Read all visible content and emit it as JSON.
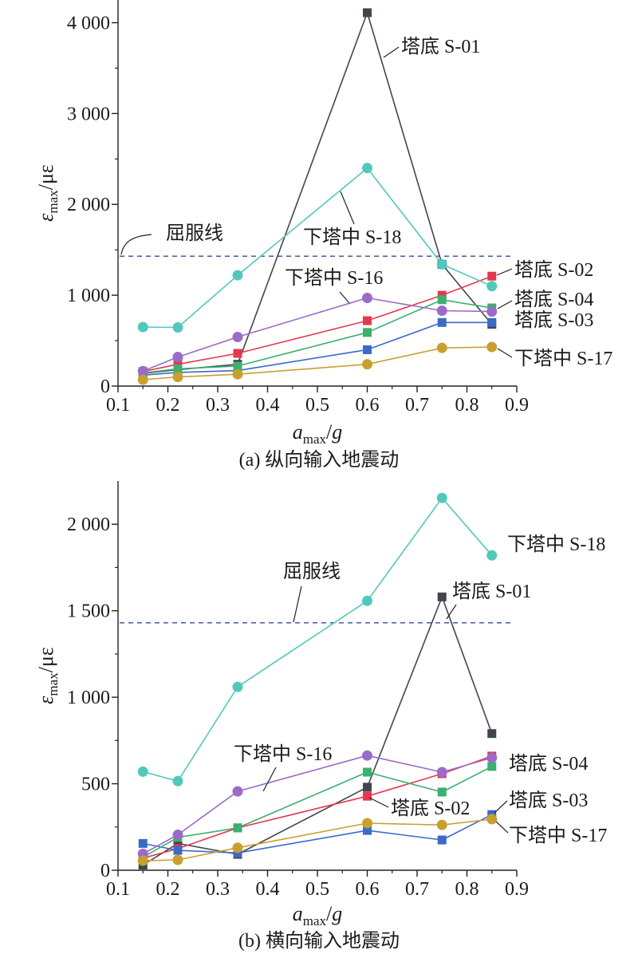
{
  "chart_data": [
    {
      "type": "line",
      "caption": "(a) 纵向输入地震动",
      "xlabel": {
        "var": "a",
        "sub": "max",
        "sep": "/",
        "unit": "g"
      },
      "ylabel": {
        "var": "ε",
        "sub": "max",
        "sep": "/",
        "unit": "με"
      },
      "xlim": [
        0.1,
        0.9
      ],
      "ylim": [
        0,
        4250
      ],
      "grid": false,
      "x_ticks": [
        {
          "value": 0.1,
          "label": "0.1"
        },
        {
          "value": 0.2,
          "label": "0.2"
        },
        {
          "value": 0.3,
          "label": "0.3"
        },
        {
          "value": 0.4,
          "label": "0.4"
        },
        {
          "value": 0.5,
          "label": "0.5"
        },
        {
          "value": 0.6,
          "label": "0.6"
        },
        {
          "value": 0.7,
          "label": "0.7"
        },
        {
          "value": 0.8,
          "label": "0.8"
        },
        {
          "value": 0.9,
          "label": "0.9"
        }
      ],
      "y_ticks": [
        {
          "value": 0,
          "label": "0"
        },
        {
          "value": 1000,
          "label": "1 000"
        },
        {
          "value": 2000,
          "label": "2 000"
        },
        {
          "value": 3000,
          "label": "3 000"
        },
        {
          "value": 4000,
          "label": "4 000"
        }
      ],
      "reference_line": {
        "label": "屈服线",
        "value": 1430,
        "style": "dashed",
        "color": "#2f4e9c"
      },
      "x": [
        0.15,
        0.22,
        0.34,
        0.6,
        0.75,
        0.85
      ],
      "series": [
        {
          "name": "塔底 S-01",
          "marker": "square",
          "color": "#44444e",
          "values": [
            140,
            180,
            240,
            4110,
            1340,
            680
          ]
        },
        {
          "name": "塔底 S-02",
          "marker": "square",
          "color": "#e5384f",
          "values": [
            160,
            240,
            360,
            720,
            1000,
            1210
          ]
        },
        {
          "name": "塔底 S-03",
          "marker": "square",
          "color": "#3b6ac8",
          "values": [
            120,
            150,
            170,
            400,
            700,
            700
          ]
        },
        {
          "name": "塔底 S-04",
          "marker": "square",
          "color": "#3bb06f",
          "values": [
            145,
            190,
            220,
            590,
            950,
            860
          ]
        },
        {
          "name": "下塔中 S-16",
          "marker": "circle",
          "color": "#9b6bc8",
          "values": [
            165,
            320,
            540,
            970,
            830,
            820
          ]
        },
        {
          "name": "下塔中 S-17",
          "marker": "circle",
          "color": "#c9a02f",
          "values": [
            70,
            100,
            130,
            240,
            420,
            430
          ]
        },
        {
          "name": "下塔中 S-18",
          "marker": "circle",
          "color": "#52c8bd",
          "values": [
            650,
            645,
            1220,
            2400,
            1340,
            1100
          ]
        }
      ]
    },
    {
      "type": "line",
      "caption": "(b) 横向输入地震动",
      "xlabel": {
        "var": "a",
        "sub": "max",
        "sep": "/",
        "unit": "g"
      },
      "ylabel": {
        "var": "ε",
        "sub": "max",
        "sep": "/",
        "unit": "με"
      },
      "xlim": [
        0.1,
        0.9
      ],
      "ylim": [
        0,
        2250
      ],
      "grid": false,
      "x_ticks": [
        {
          "value": 0.1,
          "label": "0.1"
        },
        {
          "value": 0.2,
          "label": "0.2"
        },
        {
          "value": 0.3,
          "label": "0.3"
        },
        {
          "value": 0.4,
          "label": "0.4"
        },
        {
          "value": 0.5,
          "label": "0.5"
        },
        {
          "value": 0.6,
          "label": "0.6"
        },
        {
          "value": 0.7,
          "label": "0.7"
        },
        {
          "value": 0.8,
          "label": "0.8"
        },
        {
          "value": 0.9,
          "label": "0.9"
        }
      ],
      "y_ticks": [
        {
          "value": 0,
          "label": "0"
        },
        {
          "value": 500,
          "label": "500"
        },
        {
          "value": 1000,
          "label": "1 000"
        },
        {
          "value": 1500,
          "label": "1 500"
        },
        {
          "value": 2000,
          "label": "2 000"
        }
      ],
      "reference_line": {
        "label": "屈服线",
        "value": 1430,
        "style": "dashed",
        "color": "#2f4e9c"
      },
      "x": [
        0.15,
        0.22,
        0.34,
        0.6,
        0.75,
        0.85
      ],
      "series": [
        {
          "name": "塔底 S-01",
          "marker": "square",
          "color": "#44444e",
          "values": [
            30,
            155,
            92,
            480,
            1580,
            790
          ]
        },
        {
          "name": "塔底 S-02",
          "marker": "square",
          "color": "#e5384f",
          "values": [
            70,
            125,
            245,
            428,
            558,
            660
          ]
        },
        {
          "name": "塔底 S-03",
          "marker": "square",
          "color": "#3b6ac8",
          "values": [
            155,
            115,
            100,
            230,
            175,
            322
          ]
        },
        {
          "name": "塔底 S-04",
          "marker": "square",
          "color": "#3bb06f",
          "values": [
            75,
            190,
            245,
            567,
            452,
            600
          ]
        },
        {
          "name": "下塔中 S-16",
          "marker": "circle",
          "color": "#9b6bc8",
          "values": [
            95,
            205,
            456,
            663,
            567,
            650
          ]
        },
        {
          "name": "下塔中 S-17",
          "marker": "circle",
          "color": "#c9a02f",
          "values": [
            55,
            60,
            130,
            272,
            262,
            295
          ]
        },
        {
          "name": "下塔中 S-18",
          "marker": "circle",
          "color": "#52c8bd",
          "values": [
            570,
            515,
            1060,
            1557,
            2152,
            1820
          ]
        }
      ]
    }
  ]
}
